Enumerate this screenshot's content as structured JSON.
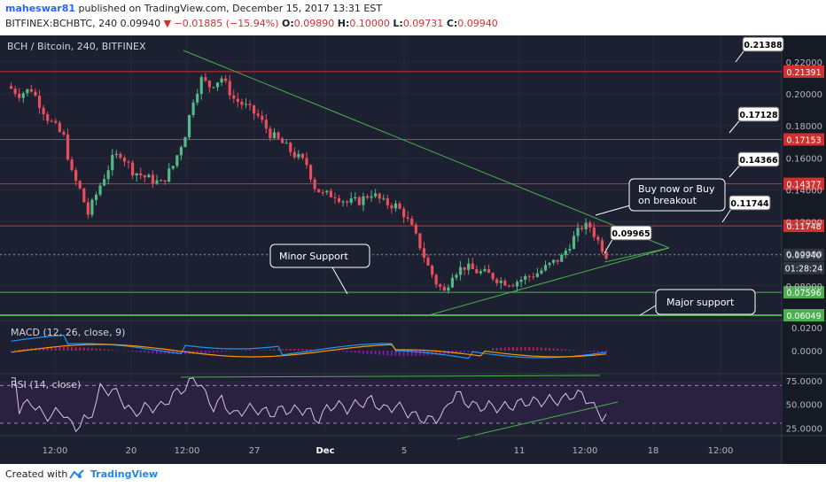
{
  "header": {
    "user": "maheswar81",
    "published": "published on TradingView.com, December 15, 2017 13:31 EST",
    "symbol_line": "BITFINEX:BCHBTC, 240",
    "last": "0.09940",
    "change": "−0.01885 (−15.94%)",
    "ohlc": {
      "o": "0.09890",
      "h": "0.10000",
      "l": "0.09731",
      "c": "0.09940"
    }
  },
  "chart_title": "BCH / Bitcoin, 240, BITFINEX",
  "footer": {
    "created_with": "Created with",
    "brand": "TradingView"
  },
  "colors": {
    "bg": "#1c2030",
    "up": "#53b987",
    "down": "#eb4d5c",
    "level": "#d32f2f",
    "support": "#4caf50",
    "trend": "#4caf50",
    "macd": "#2196f3",
    "signal": "#ff9800",
    "rsi": "#d1c4e9"
  },
  "chart_data": {
    "type": "line",
    "x_tick_labels": [
      "12:00",
      "20",
      "12:00",
      "27",
      "Dec",
      "5",
      "11",
      "12:00",
      "18",
      "12:00"
    ],
    "price_axis_ticks": [
      "0.22000",
      "0.20000",
      "0.18000",
      "0.16000",
      "0.14000",
      "0.12000",
      "0.10000",
      "0.08000"
    ],
    "price_ylim": [
      0.0605,
      0.2255
    ],
    "price_path": [
      [
        0,
        0.205
      ],
      [
        3,
        0.2
      ],
      [
        6,
        0.203
      ],
      [
        10,
        0.185
      ],
      [
        14,
        0.173
      ],
      [
        16,
        0.15
      ],
      [
        18,
        0.14
      ],
      [
        20,
        0.125
      ],
      [
        23,
        0.143
      ],
      [
        26,
        0.159
      ],
      [
        28,
        0.163
      ],
      [
        31,
        0.152
      ],
      [
        34,
        0.148
      ],
      [
        38,
        0.144
      ],
      [
        41,
        0.155
      ],
      [
        44,
        0.175
      ],
      [
        46,
        0.197
      ],
      [
        48,
        0.209
      ],
      [
        50,
        0.205
      ],
      [
        53,
        0.21
      ],
      [
        56,
        0.197
      ],
      [
        59,
        0.192
      ],
      [
        62,
        0.186
      ],
      [
        65,
        0.175
      ],
      [
        68,
        0.169
      ],
      [
        71,
        0.162
      ],
      [
        74,
        0.156
      ],
      [
        76,
        0.142
      ],
      [
        78,
        0.137
      ],
      [
        81,
        0.137
      ],
      [
        84,
        0.132
      ],
      [
        87,
        0.133
      ],
      [
        90,
        0.138
      ],
      [
        93,
        0.132
      ],
      [
        96,
        0.13
      ],
      [
        98,
        0.125
      ],
      [
        100,
        0.116
      ],
      [
        102,
        0.105
      ],
      [
        104,
        0.092
      ],
      [
        106,
        0.082
      ],
      [
        108,
        0.076
      ],
      [
        110,
        0.088
      ],
      [
        113,
        0.092
      ],
      [
        116,
        0.089
      ],
      [
        119,
        0.087
      ],
      [
        122,
        0.083
      ],
      [
        125,
        0.082
      ],
      [
        128,
        0.085
      ],
      [
        131,
        0.088
      ],
      [
        134,
        0.093
      ],
      [
        137,
        0.098
      ],
      [
        140,
        0.11
      ],
      [
        142,
        0.117
      ],
      [
        144,
        0.117
      ],
      [
        146,
        0.108
      ],
      [
        148,
        0.0994
      ]
    ],
    "candles_count": 148,
    "horizontal_levels": [
      {
        "price": 0.21391,
        "label": "0.21391",
        "kind": "resistance"
      },
      {
        "price": 0.17153,
        "label": "0.17153",
        "kind": "resistance"
      },
      {
        "price": 0.14377,
        "label": "0.14377",
        "kind": "resistance"
      },
      {
        "price": 0.11748,
        "label": "0.11748",
        "kind": "resistance"
      },
      {
        "price": 0.07596,
        "label": "0.07596",
        "kind": "support"
      },
      {
        "price": 0.06049,
        "label": "0.06049",
        "kind": "support"
      }
    ],
    "current_price": {
      "label": "0.09940",
      "countdown": "01:28:24"
    },
    "callouts": [
      "0.21388",
      "0.17128",
      "0.14366",
      "0.11744",
      "0.09965"
    ],
    "annotations": [
      "Minor Support",
      "Buy now or Buy on breakout",
      "Major support"
    ],
    "macd": {
      "label": "MACD (12, 26, close, 9)",
      "axis_ticks": [
        "0.0200",
        "0.0000"
      ]
    },
    "rsi": {
      "label": "RSI (14, close)",
      "axis_ticks": [
        "75.0000",
        "50.0000",
        "25.0000"
      ],
      "bands": [
        70,
        30
      ]
    }
  }
}
